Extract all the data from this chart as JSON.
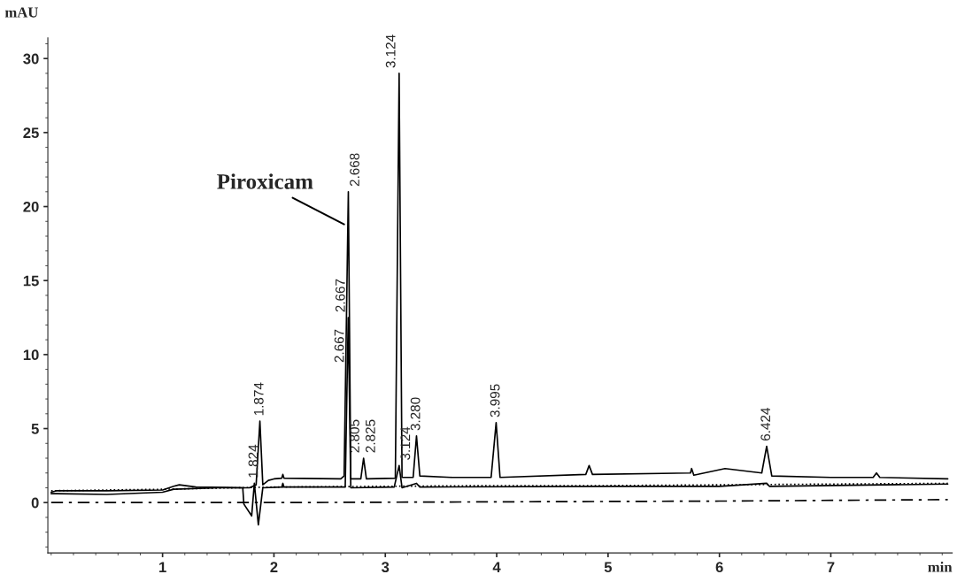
{
  "chart_data": {
    "type": "line",
    "xlabel": "min",
    "ylabel": "mAU",
    "xlim": [
      -0.03,
      8.09
    ],
    "ylim": [
      -3.4,
      31.4
    ],
    "xticks": [
      1,
      2,
      3,
      4,
      5,
      6,
      7
    ],
    "yticks": [
      0,
      5,
      10,
      15,
      20,
      25,
      30
    ],
    "grid": false,
    "marker": "none",
    "series": [
      {
        "color": "#000000",
        "line_style": "solid",
        "x": [
          0,
          0.05,
          0.5,
          1.0,
          1.1,
          1.15,
          1.3,
          1.72,
          1.78,
          1.84,
          1.874,
          1.9,
          1.95,
          2.0,
          2.07,
          2.08,
          2.09,
          2.6,
          2.63,
          2.668,
          2.69,
          2.78,
          2.805,
          2.83,
          3.09,
          3.124,
          3.15,
          3.25,
          3.28,
          3.31,
          3.6,
          3.95,
          3.995,
          4.03,
          4.8,
          4.83,
          4.86,
          5.74,
          5.75,
          5.77,
          6.05,
          6.38,
          6.424,
          6.47,
          7.0,
          7.38,
          7.41,
          7.44,
          8.05
        ],
        "values": [
          0.7,
          0.8,
          0.8,
          0.85,
          1.1,
          1.2,
          1.05,
          1.0,
          1.0,
          1.2,
          5.5,
          1.2,
          1.5,
          1.6,
          1.65,
          1.9,
          1.65,
          1.6,
          1.8,
          21,
          1.6,
          1.6,
          3.0,
          1.6,
          1.65,
          29,
          1.7,
          1.7,
          4.5,
          1.8,
          1.7,
          1.7,
          5.4,
          1.7,
          1.9,
          2.5,
          1.9,
          2.0,
          2.3,
          1.85,
          2.3,
          2.0,
          3.8,
          1.8,
          1.7,
          1.7,
          2.0,
          1.7,
          1.6
        ]
      },
      {
        "color": "#000000",
        "line_style": "solid",
        "x": [
          0,
          0.05,
          0.5,
          1.0,
          1.1,
          1.5,
          1.72,
          1.73,
          1.8,
          1.824,
          1.86,
          1.9,
          2.07,
          2.08,
          2.09,
          2.64,
          2.667,
          2.69,
          3.08,
          3.124,
          3.15,
          3.28,
          3.31,
          5.0,
          6.0,
          6.424,
          6.45,
          8.05
        ],
        "values": [
          0.6,
          0.6,
          0.55,
          0.7,
          0.9,
          1.0,
          1.0,
          -0.1,
          -0.9,
          1.3,
          -1.5,
          1.0,
          1.05,
          1.3,
          1.05,
          1.05,
          12.5,
          1.0,
          1.05,
          2.5,
          1.0,
          1.3,
          1.05,
          1.1,
          1.1,
          1.3,
          1.1,
          1.25
        ]
      },
      {
        "color": "#000000",
        "line_style": "dotted",
        "x": [
          0,
          1.0,
          2.0,
          3.0,
          4.0,
          5.0,
          6.0,
          7.0,
          8.05
        ],
        "values": [
          0.8,
          0.9,
          1.05,
          1.1,
          1.15,
          1.15,
          1.2,
          1.25,
          1.3
        ]
      },
      {
        "color": "#000000",
        "line_style": "dashed",
        "x": [
          0,
          2.0,
          4.0,
          6.0,
          8.05
        ],
        "values": [
          0.0,
          0.0,
          0.05,
          0.1,
          0.2
        ]
      }
    ],
    "annotations": [
      {
        "text": "Piroxicam",
        "x": 2.63,
        "y": 18.8
      },
      {
        "text": "1.824",
        "x": 1.824,
        "y": 1.4
      },
      {
        "text": "1.874",
        "x": 1.874,
        "y": 5.6
      },
      {
        "text": "2.667",
        "x": 2.662,
        "y": 9.2
      },
      {
        "text": "2.667",
        "x": 2.672,
        "y": 12.6
      },
      {
        "text": "2.668",
        "x": 2.668,
        "y": 21.1
      },
      {
        "text": "2.805",
        "x": 2.8,
        "y": 3.1
      },
      {
        "text": "2.825",
        "x": 2.81,
        "y": 3.1
      },
      {
        "text": "3.124",
        "x": 3.124,
        "y": 29.1
      },
      {
        "text": "3.124",
        "x": 3.124,
        "y": 2.6
      },
      {
        "text": "3.280",
        "x": 3.28,
        "y": 4.6
      },
      {
        "text": "3.995",
        "x": 3.995,
        "y": 5.5
      },
      {
        "text": "6.424",
        "x": 6.424,
        "y": 3.9
      }
    ]
  }
}
